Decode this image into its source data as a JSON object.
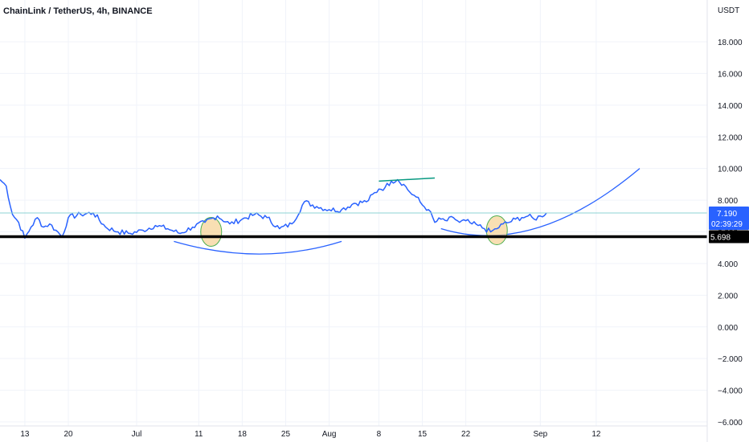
{
  "header": {
    "title": "ChainLink / TetherUS, 4h, BINANCE"
  },
  "colors": {
    "price": "#2962ff",
    "grid": "#f0f3fa",
    "axis_text": "#131722",
    "support": "#000000",
    "trend": "#089981",
    "circle_fill": "#f5d49a",
    "circle_stroke": "#4caf50",
    "arc": "#2962ff",
    "label_bg": "#2962ff",
    "price_line": "#8ed3d4"
  },
  "chart_data": {
    "type": "line",
    "title": "ChainLink / TetherUS, 4h, BINANCE",
    "xlabel": "",
    "ylabel": "",
    "currency": "USDT",
    "ylim": [
      -6,
      20
    ],
    "y_ticks": [
      "18.000",
      "16.000",
      "14.000",
      "12.000",
      "10.000",
      "8.000",
      "6.000",
      "4.000",
      "2.000",
      "0.000",
      "−2.000",
      "−4.000",
      "−6.000"
    ],
    "y_tick_values": [
      18,
      16,
      14,
      12,
      10,
      8,
      6,
      4,
      2,
      0,
      -2,
      -4,
      -6
    ],
    "x_ticks": [
      "13",
      "20",
      "Jul",
      "11",
      "18",
      "25",
      "Aug",
      "8",
      "15",
      "22",
      "Sep",
      "12"
    ],
    "x_tick_days": [
      13,
      20,
      31,
      41,
      48,
      55,
      62,
      70,
      77,
      84,
      96,
      105
    ],
    "x_range_days": [
      9,
      112
    ],
    "grid": true,
    "series": [
      {
        "x_days": [
          9,
          10,
          11,
          12,
          13,
          14,
          15,
          16,
          17,
          18,
          19,
          20,
          22,
          24,
          26,
          28,
          30,
          32,
          34,
          36,
          38,
          40,
          42,
          44,
          46,
          48,
          50,
          52,
          54,
          56,
          58,
          60,
          62,
          64,
          66,
          68,
          70,
          71,
          72,
          73,
          74,
          75,
          76,
          77,
          78,
          79,
          80,
          81,
          82,
          83,
          84,
          85,
          86,
          87,
          88,
          89,
          90,
          91,
          92,
          93,
          94,
          95,
          96,
          97
        ],
        "values": [
          9.3,
          8.9,
          7.1,
          6.6,
          5.6,
          6.3,
          6.9,
          6.3,
          6.5,
          6.1,
          5.7,
          6.9,
          7.1,
          7.2,
          6.3,
          6.0,
          5.9,
          6.1,
          6.4,
          6.2,
          5.9,
          6.3,
          6.6,
          7.0,
          6.5,
          6.8,
          7.1,
          6.9,
          6.2,
          6.5,
          7.9,
          7.6,
          7.4,
          7.4,
          7.8,
          7.9,
          8.7,
          8.8,
          9.2,
          9.3,
          9.0,
          8.5,
          8.2,
          7.7,
          7.4,
          6.6,
          6.8,
          6.7,
          6.9,
          6.6,
          6.7,
          6.5,
          6.4,
          6.2,
          6.0,
          6.2,
          6.5,
          6.6,
          6.8,
          6.9,
          7.0,
          6.8,
          7.0,
          7.2
        ]
      }
    ],
    "horizontal_line": {
      "value": 5.698,
      "label": "5.698"
    },
    "last_price": {
      "value": 7.19,
      "label": "7.190",
      "countdown": "02:39:29"
    },
    "trend_line": {
      "x_days": [
        70,
        79
      ],
      "values": [
        9.2,
        9.4
      ]
    },
    "highlight_circles": [
      {
        "x_day": 43,
        "value": 6.0
      },
      {
        "x_day": 89,
        "value": 6.1
      }
    ],
    "arcs": [
      {
        "start": {
          "x_day": 37,
          "value": 5.4
        },
        "control": {
          "x_day": 51,
          "value": 3.8
        },
        "end": {
          "x_day": 64,
          "value": 5.4
        }
      },
      {
        "start": {
          "x_day": 80,
          "value": 6.2
        },
        "control": {
          "x_day": 95,
          "value": 4.4
        },
        "end": {
          "x_day": 112,
          "value": 10.0
        }
      }
    ]
  }
}
